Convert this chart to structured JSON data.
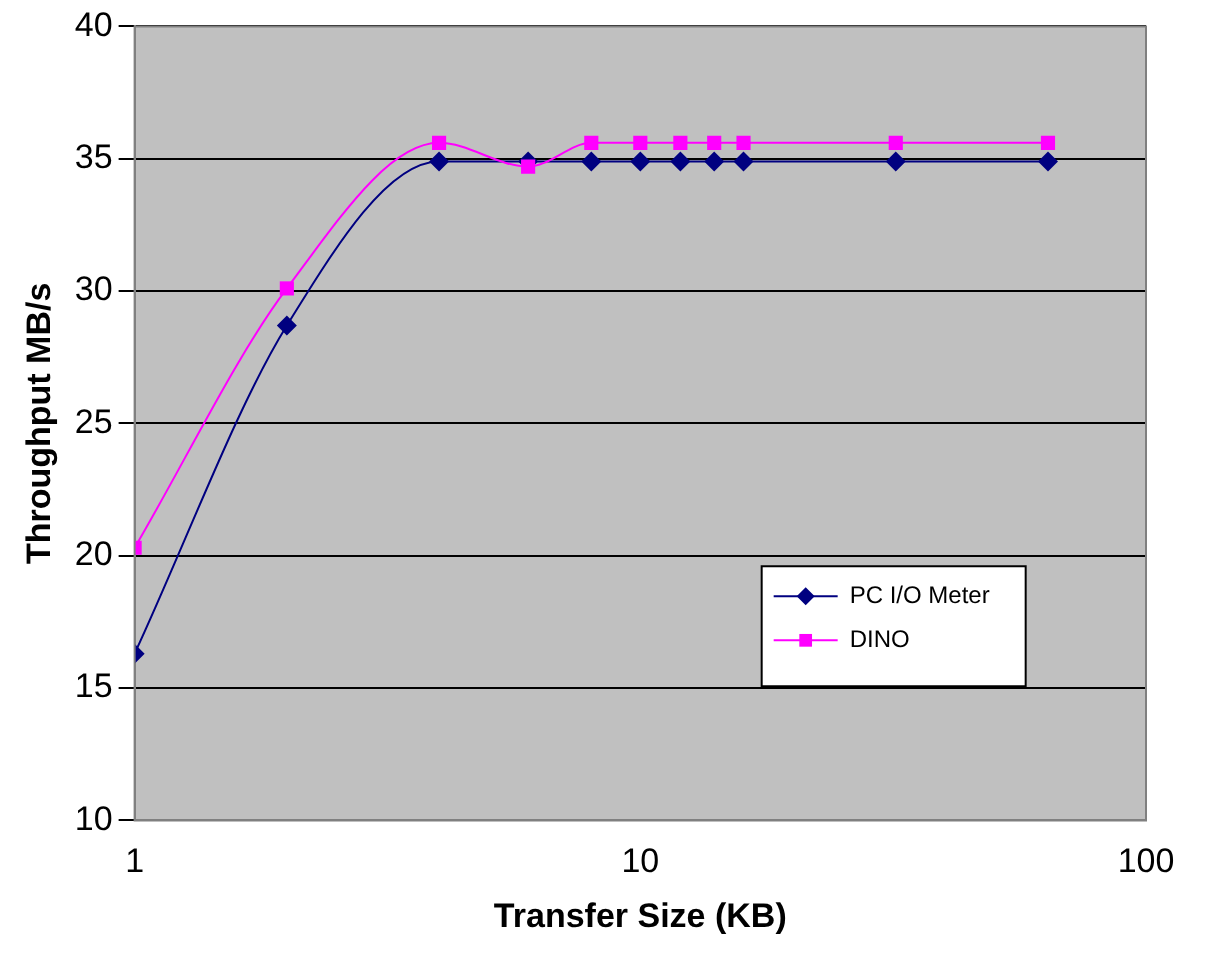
{
  "chart_data": {
    "type": "line",
    "xlabel": "Transfer Size (KB)",
    "ylabel": "Throughput MB/s",
    "log": "x",
    "x": [
      1,
      2,
      4,
      6,
      8,
      10,
      12,
      14,
      16,
      32,
      64
    ],
    "series": [
      {
        "name": "PC I/O Meter",
        "color": "#000080",
        "marker": "diamond",
        "values": [
          16.3,
          28.7,
          34.9,
          34.9,
          34.9,
          34.9,
          34.9,
          34.9,
          34.9,
          34.9,
          34.9
        ]
      },
      {
        "name": "DINO",
        "color": "#ff00ff",
        "marker": "square",
        "values": [
          20.3,
          30.1,
          35.6,
          34.7,
          35.6,
          35.6,
          35.6,
          35.6,
          35.6,
          35.6,
          35.6
        ]
      }
    ],
    "xlim": [
      1,
      100
    ],
    "xticks": [
      1,
      10,
      100
    ],
    "ylim": [
      10,
      40
    ],
    "yticks": [
      10,
      15,
      20,
      25,
      30,
      35,
      40
    ],
    "grid": "y",
    "legend": "right"
  }
}
